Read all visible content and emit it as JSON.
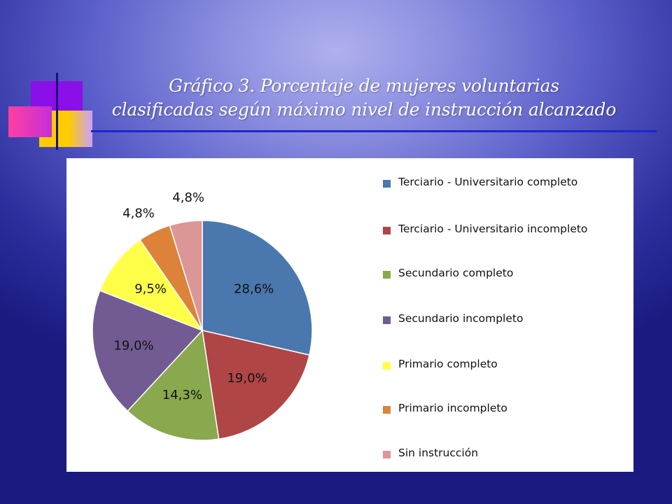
{
  "slide": {
    "title_line1": "Gráfico 3. Porcentaje de mujeres voluntarias",
    "title_line2": "clasificadas según máximo nivel de instrucción alcanzado"
  },
  "colors": {
    "accent_rule": "#1f25d0",
    "deco_purple": "#8b0fe8",
    "deco_magenta": "#e0309a",
    "deco_yellow": "#ffcc00"
  },
  "chart_data": {
    "type": "pie",
    "title": "",
    "categories": [
      "Terciario - Universitario completo",
      "Terciario - Universitario incompleto",
      "Secundario completo",
      "Secundario incompleto",
      "Primario completo",
      "Primario incompleto",
      "Sin instrucción"
    ],
    "values": [
      28.6,
      19.0,
      14.3,
      19.0,
      9.5,
      4.8,
      4.8
    ],
    "labels": [
      "28,6%",
      "19,0%",
      "14,3%",
      "19,0%",
      "9,5%",
      "4,8%",
      "4,8%"
    ],
    "colors": [
      "#4a77ad",
      "#b04545",
      "#8aa84e",
      "#725b93",
      "#ffff4a",
      "#dd8239",
      "#dd9696"
    ],
    "legend_position": "right",
    "start_angle_deg": 0,
    "direction": "clockwise"
  }
}
